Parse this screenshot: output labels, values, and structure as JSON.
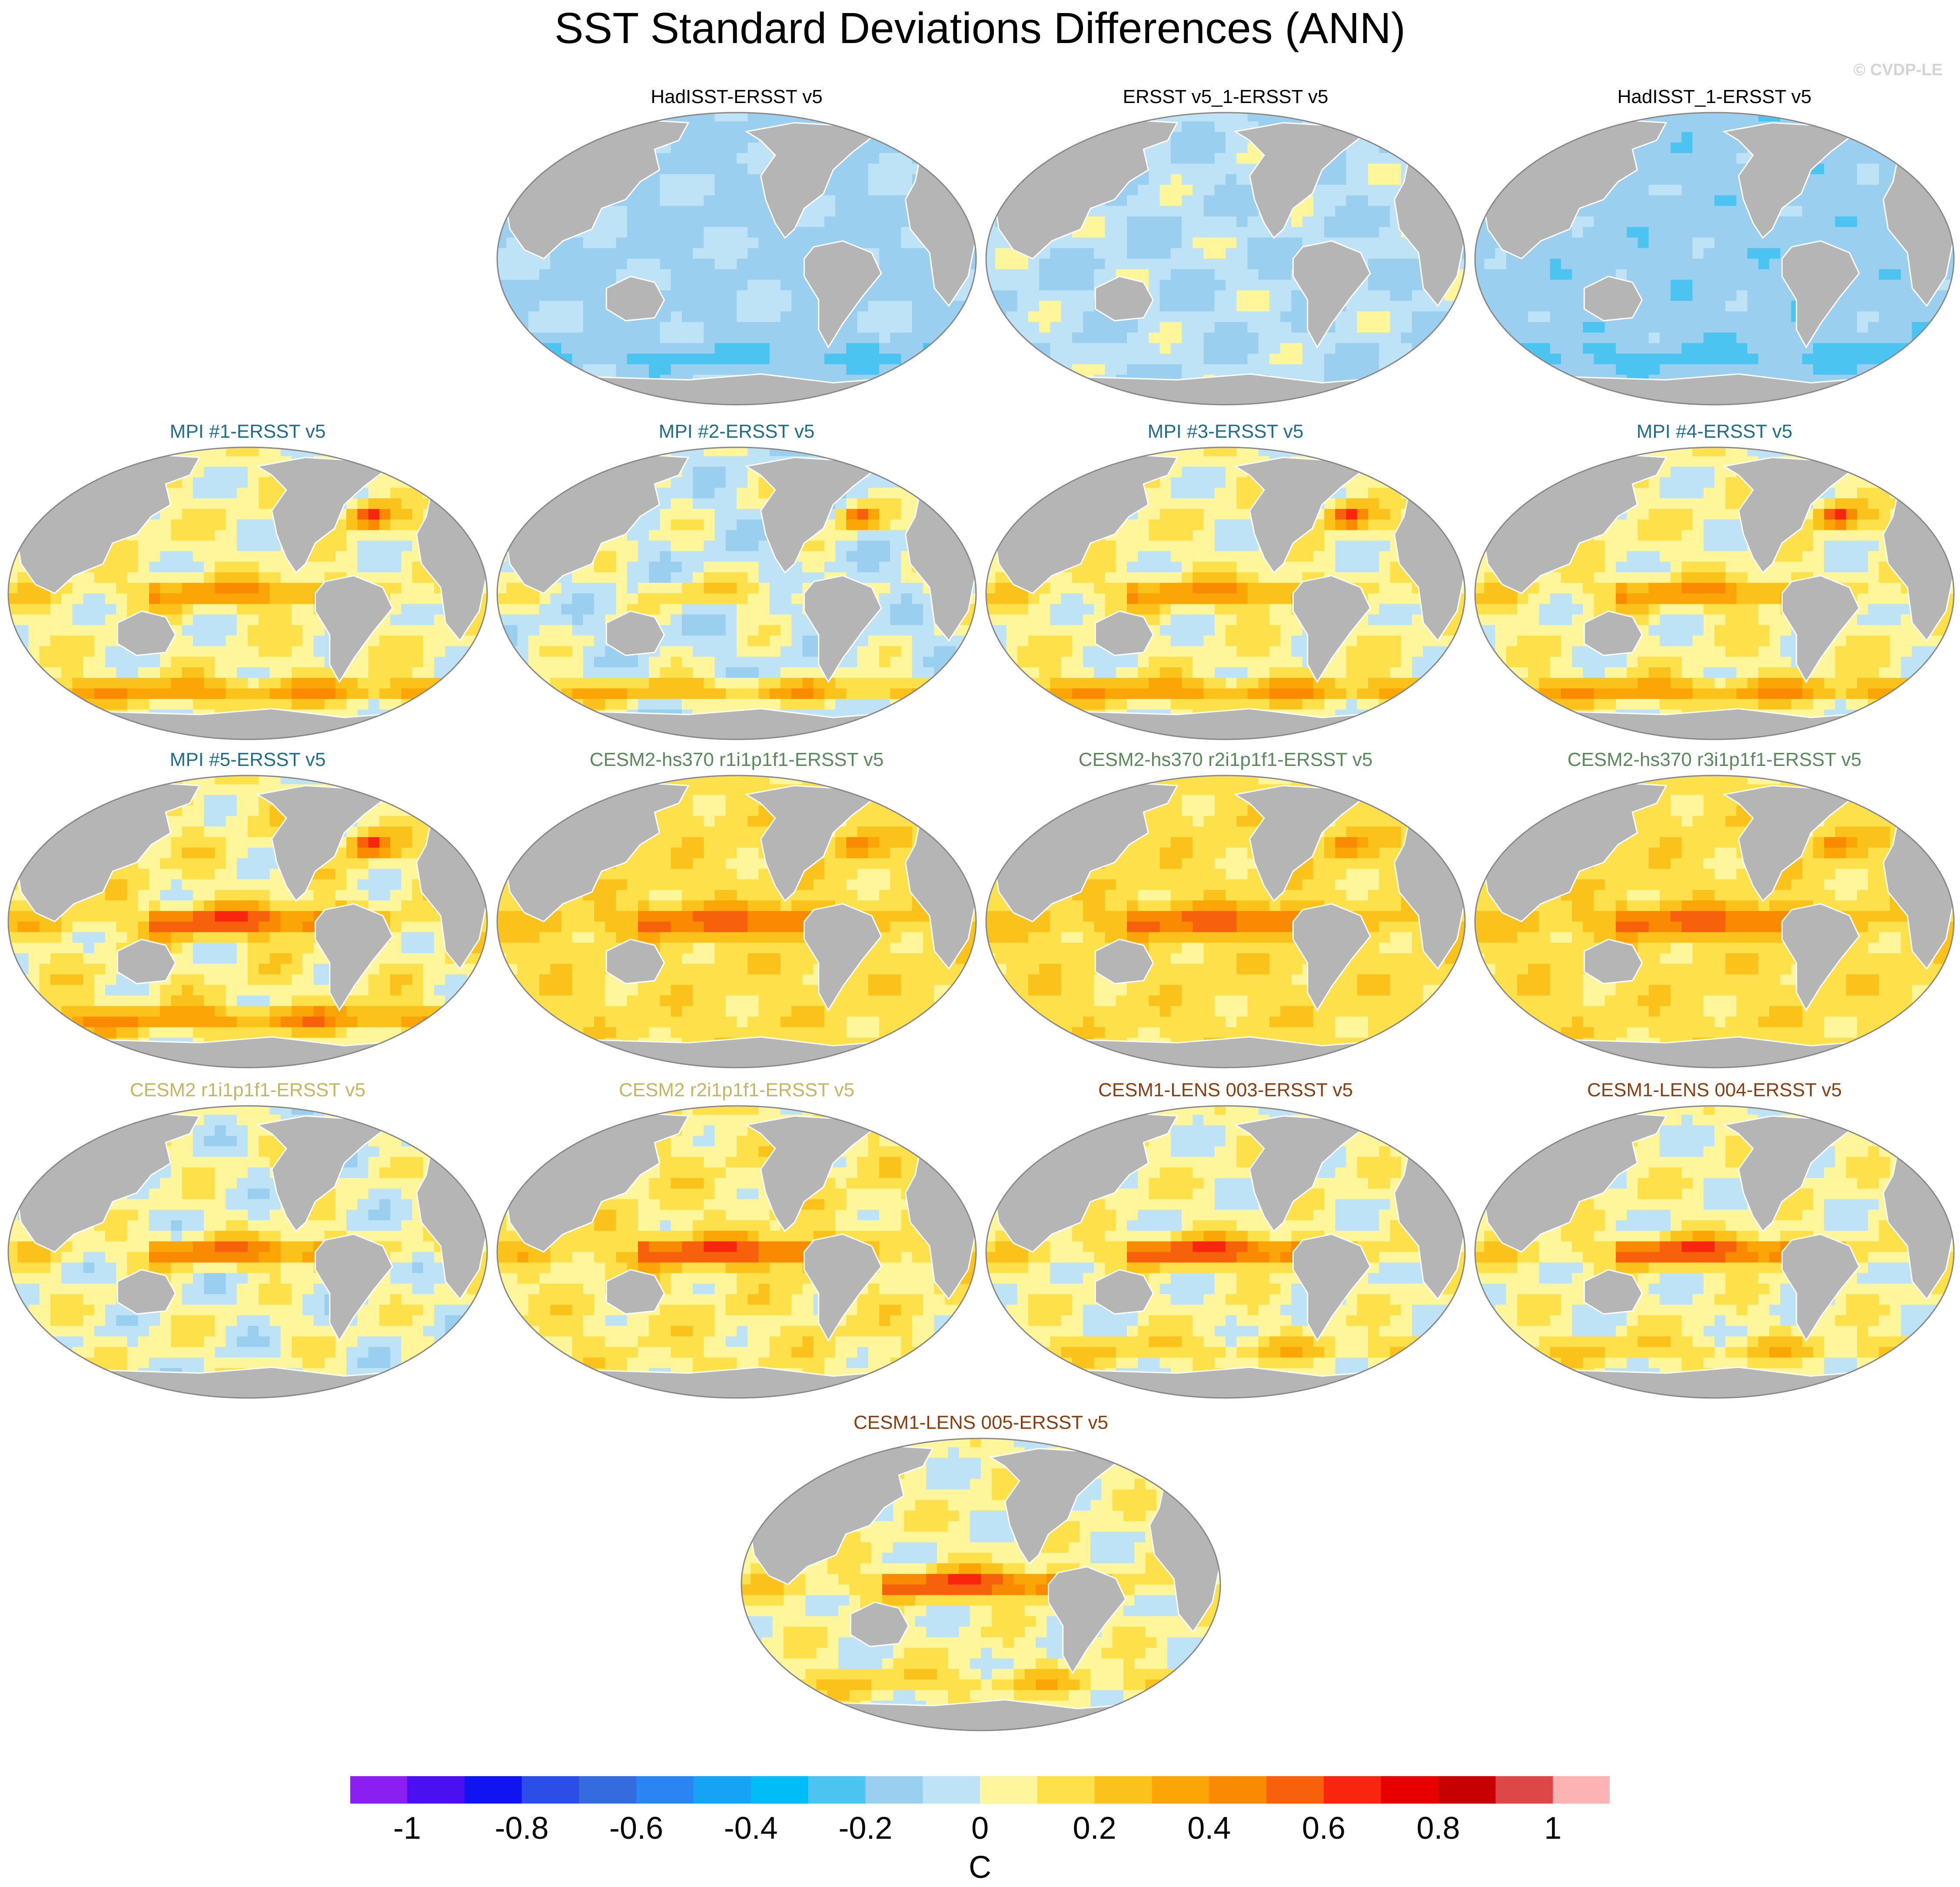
{
  "figure": {
    "title": "SST Standard Deviations Differences (ANN)",
    "watermark": "© CVDP-LE",
    "colors": {
      "land": "#b5b5b5",
      "coast": "#ffffff",
      "outline": "#888888",
      "title_black": "#000000",
      "title_mpi": "#1f6e8c",
      "title_cesm2_hs370": "#5a8a5a",
      "title_cesm2": "#c8b560",
      "title_cesm1_lens": "#8b3e0f"
    }
  },
  "chart_data": {
    "type": "heatmap",
    "map_projection": "robinson-like global, Pacific-centered",
    "panels": [
      {
        "id": "p1",
        "title": "HadISST-ERSST v5",
        "title_color": "title_black",
        "pattern": "obs_cool"
      },
      {
        "id": "p2",
        "title": "ERSST v5_1-ERSST v5",
        "title_color": "title_black",
        "pattern": "obs_flat"
      },
      {
        "id": "p3",
        "title": "HadISST_1-ERSST v5",
        "title_color": "title_black",
        "pattern": "obs_cool2"
      },
      {
        "id": "p4",
        "title": "MPI #1-ERSST v5",
        "title_color": "title_mpi",
        "pattern": "mpi"
      },
      {
        "id": "p5",
        "title": "MPI #2-ERSST v5",
        "title_color": "title_mpi",
        "pattern": "mpi_cool"
      },
      {
        "id": "p6",
        "title": "MPI #3-ERSST v5",
        "title_color": "title_mpi",
        "pattern": "mpi"
      },
      {
        "id": "p7",
        "title": "MPI #4-ERSST v5",
        "title_color": "title_mpi",
        "pattern": "mpi"
      },
      {
        "id": "p8",
        "title": "MPI #5-ERSST v5",
        "title_color": "title_mpi",
        "pattern": "mpi_warm"
      },
      {
        "id": "p9",
        "title": "CESM2-hs370 r1i1p1f1-ERSST v5",
        "title_color": "title_cesm2_hs370",
        "pattern": "warm"
      },
      {
        "id": "p10",
        "title": "CESM2-hs370 r2i1p1f1-ERSST v5",
        "title_color": "title_cesm2_hs370",
        "pattern": "warm"
      },
      {
        "id": "p11",
        "title": "CESM2-hs370 r3i1p1f1-ERSST v5",
        "title_color": "title_cesm2_hs370",
        "pattern": "warm"
      },
      {
        "id": "p12",
        "title": "CESM2 r1i1p1f1-ERSST v5",
        "title_color": "title_cesm2",
        "pattern": "cesm2"
      },
      {
        "id": "p13",
        "title": "CESM2 r2i1p1f1-ERSST v5",
        "title_color": "title_cesm2",
        "pattern": "cesm2_warm"
      },
      {
        "id": "p14",
        "title": "CESM1-LENS 003-ERSST v5",
        "title_color": "title_cesm1_lens",
        "pattern": "lens"
      },
      {
        "id": "p15",
        "title": "CESM1-LENS 004-ERSST v5",
        "title_color": "title_cesm1_lens",
        "pattern": "lens"
      },
      {
        "id": "p16",
        "title": "CESM1-LENS 005-ERSST v5",
        "title_color": "title_cesm1_lens",
        "pattern": "lens"
      }
    ],
    "colorbar": {
      "unit": "C",
      "range": [
        -1.1,
        1.1
      ],
      "levels": [
        -1,
        -0.9,
        -0.8,
        -0.7,
        -0.6,
        -0.5,
        -0.4,
        -0.3,
        -0.2,
        -0.1,
        0,
        0.1,
        0.2,
        0.3,
        0.4,
        0.5,
        0.6,
        0.7,
        0.8,
        0.9,
        1
      ],
      "tick_labels": [
        "-1",
        "-0.8",
        "-0.6",
        "-0.4",
        "-0.2",
        "0",
        "0.2",
        "0.4",
        "0.6",
        "0.8",
        "1"
      ],
      "tick_values": [
        -1,
        -0.8,
        -0.6,
        -0.4,
        -0.2,
        0,
        0.2,
        0.4,
        0.6,
        0.8,
        1
      ],
      "colors": [
        "#8b1ef0",
        "#4b10f0",
        "#0f14f0",
        "#2b4ee6",
        "#346bde",
        "#2a85f3",
        "#16a2f5",
        "#00bdf8",
        "#4cc4f1",
        "#9acff0",
        "#bfe3f6",
        "#fff59a",
        "#fde04a",
        "#fcc21c",
        "#fba506",
        "#fb8a03",
        "#f8610c",
        "#f9250e",
        "#e80000",
        "#c70001",
        "#de4747",
        "#fdb2b3"
      ]
    }
  }
}
